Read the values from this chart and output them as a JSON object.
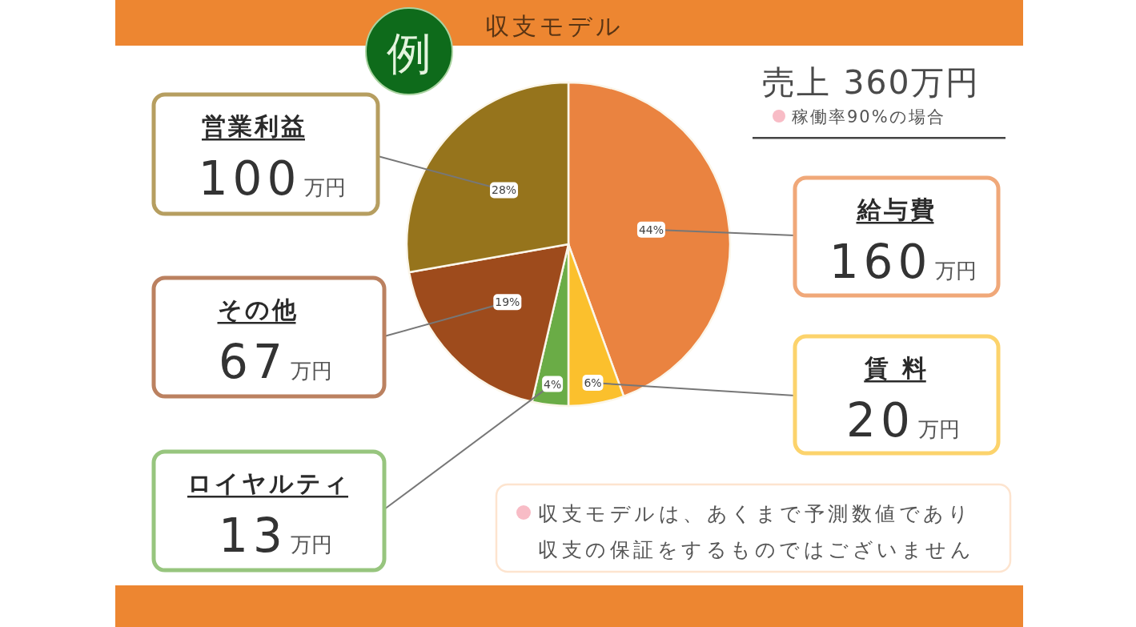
{
  "chart_data": {
    "type": "pie",
    "title": "収支モデル",
    "subtitle": "売上 360万円",
    "categories": [
      "給与費",
      "賃 料",
      "ロイヤルティ",
      "その他",
      "営業利益"
    ],
    "values": [
      160,
      20,
      13,
      67,
      100
    ],
    "colors": [
      "#ea8340",
      "#fbc02d",
      "#6aac46",
      "#9e4b1c",
      "#96741c"
    ],
    "value_labels": [
      "160万円",
      "20万円",
      "13万円",
      "67万円",
      "100万円"
    ],
    "annotations": [
      "例",
      "稼働率90%の場合",
      "収支モデルは、あくまで予測数値であり",
      "収支の保証をするものではございません",
      {
        "text": "44%",
        "x": "給与費"
      },
      {
        "text": "6%",
        "x": "賃 料"
      },
      {
        "text": "4%",
        "x": "ロイヤルティ"
      },
      {
        "text": "19%",
        "x": "その他"
      },
      {
        "text": "28%",
        "x": "営業利益"
      }
    ]
  }
}
